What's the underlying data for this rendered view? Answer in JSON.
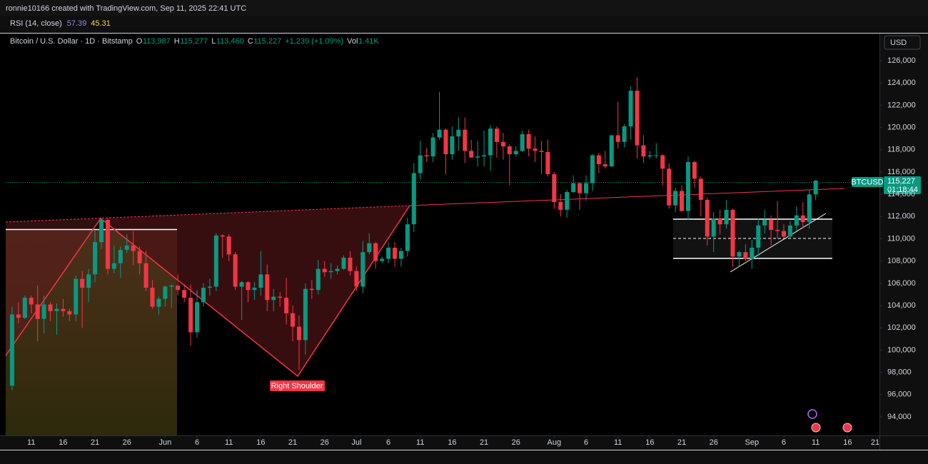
{
  "header": {
    "attribution": "ronnie10166 created with TradingView.com, Sep 11, 2025 22:41 UTC"
  },
  "indicator": {
    "name": "RSI (14, close)",
    "values": [
      57.39,
      45.31
    ],
    "colors": [
      "#9f85e3",
      "#f7d74a"
    ]
  },
  "chart_data": {
    "type": "candlestick",
    "title": "Bitcoin / U.S. Dollar · 1D · Bitstamp",
    "status_line": [
      {
        "key": "O",
        "text": "113,987"
      },
      {
        "key": "H",
        "text": "115,277"
      },
      {
        "key": "L",
        "text": "113,460"
      },
      {
        "key": "C",
        "text": "115,227"
      }
    ],
    "change": "+1,239 (+1.09%)",
    "volume": {
      "key": "Vol",
      "text": "1.41K"
    },
    "currency": "USD",
    "symbol_label": "BTCUSD",
    "last_price_label": "115,227",
    "countdown": "01:18:44",
    "annotation": "Right Shoulder",
    "up_color": "#089981",
    "down_color": "#f23645",
    "grid": false,
    "x": [
      "2025-05-08",
      "2025-05-09",
      "2025-05-10",
      "2025-05-11",
      "2025-05-12",
      "2025-05-13",
      "2025-05-14",
      "2025-05-15",
      "2025-05-16",
      "2025-05-17",
      "2025-05-18",
      "2025-05-19",
      "2025-05-20",
      "2025-05-21",
      "2025-05-22",
      "2025-05-23",
      "2025-05-24",
      "2025-05-25",
      "2025-05-26",
      "2025-05-27",
      "2025-05-28",
      "2025-05-29",
      "2025-05-30",
      "2025-05-31",
      "2025-06-01",
      "2025-06-02",
      "2025-06-03",
      "2025-06-04",
      "2025-06-05",
      "2025-06-06",
      "2025-06-07",
      "2025-06-08",
      "2025-06-09",
      "2025-06-10",
      "2025-06-11",
      "2025-06-12",
      "2025-06-13",
      "2025-06-14",
      "2025-06-15",
      "2025-06-16",
      "2025-06-17",
      "2025-06-18",
      "2025-06-19",
      "2025-06-20",
      "2025-06-21",
      "2025-06-22",
      "2025-06-23",
      "2025-06-24",
      "2025-06-25",
      "2025-06-26",
      "2025-06-27",
      "2025-06-28",
      "2025-06-29",
      "2025-06-30",
      "2025-07-01",
      "2025-07-02",
      "2025-07-03",
      "2025-07-04",
      "2025-07-05",
      "2025-07-06",
      "2025-07-07",
      "2025-07-08",
      "2025-07-09",
      "2025-07-10",
      "2025-07-11",
      "2025-07-12",
      "2025-07-13",
      "2025-07-14",
      "2025-07-15",
      "2025-07-16",
      "2025-07-17",
      "2025-07-18",
      "2025-07-19",
      "2025-07-20",
      "2025-07-21",
      "2025-07-22",
      "2025-07-23",
      "2025-07-24",
      "2025-07-25",
      "2025-07-26",
      "2025-07-27",
      "2025-07-28",
      "2025-07-29",
      "2025-07-30",
      "2025-07-31",
      "2025-08-01",
      "2025-08-02",
      "2025-08-03",
      "2025-08-04",
      "2025-08-05",
      "2025-08-06",
      "2025-08-07",
      "2025-08-08",
      "2025-08-09",
      "2025-08-10",
      "2025-08-11",
      "2025-08-12",
      "2025-08-13",
      "2025-08-14",
      "2025-08-15",
      "2025-08-16",
      "2025-08-17",
      "2025-08-18",
      "2025-08-19",
      "2025-08-20",
      "2025-08-21",
      "2025-08-22",
      "2025-08-23",
      "2025-08-24",
      "2025-08-25",
      "2025-08-26",
      "2025-08-27",
      "2025-08-28",
      "2025-08-29",
      "2025-08-30",
      "2025-08-31",
      "2025-09-01",
      "2025-09-02",
      "2025-09-03",
      "2025-09-04",
      "2025-09-05",
      "2025-09-06",
      "2025-09-07",
      "2025-09-08",
      "2025-09-09",
      "2025-09-10",
      "2025-09-11"
    ],
    "values": [
      [
        96800,
        103900,
        96400,
        103200
      ],
      [
        103200,
        104300,
        102400,
        102900
      ],
      [
        102900,
        104900,
        102800,
        104700
      ],
      [
        104700,
        104900,
        103300,
        104100
      ],
      [
        104100,
        105800,
        100800,
        102800
      ],
      [
        102800,
        104900,
        101500,
        104100
      ],
      [
        104100,
        104300,
        102600,
        103500
      ],
      [
        103500,
        104200,
        101400,
        103700
      ],
      [
        103700,
        104600,
        103000,
        103500
      ],
      [
        103500,
        103700,
        102600,
        103200
      ],
      [
        103200,
        106700,
        102600,
        106400
      ],
      [
        106400,
        107100,
        102000,
        105600
      ],
      [
        105600,
        107300,
        104300,
        106800
      ],
      [
        106800,
        110800,
        106100,
        109700
      ],
      [
        109700,
        111900,
        109100,
        111700
      ],
      [
        111700,
        111800,
        106800,
        107300
      ],
      [
        107300,
        109400,
        106900,
        107800
      ],
      [
        107800,
        109300,
        106500,
        109000
      ],
      [
        109000,
        110400,
        108700,
        109400
      ],
      [
        109400,
        110700,
        107600,
        108900
      ],
      [
        108900,
        109300,
        106800,
        107800
      ],
      [
        107800,
        108900,
        105300,
        105600
      ],
      [
        105600,
        106300,
        103700,
        103900
      ],
      [
        103900,
        104800,
        103200,
        104600
      ],
      [
        104600,
        105800,
        103900,
        105700
      ],
      [
        105700,
        105900,
        103800,
        105800
      ],
      [
        105800,
        106800,
        104900,
        105400
      ],
      [
        105400,
        105900,
        104300,
        104700
      ],
      [
        104700,
        105900,
        100400,
        101600
      ],
      [
        101600,
        105400,
        101100,
        104300
      ],
      [
        104300,
        106000,
        103900,
        105600
      ],
      [
        105600,
        106400,
        104900,
        105700
      ],
      [
        105700,
        110500,
        105300,
        110300
      ],
      [
        110300,
        110400,
        108300,
        110200
      ],
      [
        110200,
        110400,
        108000,
        108600
      ],
      [
        108600,
        108800,
        105400,
        105700
      ],
      [
        105700,
        106200,
        102700,
        106100
      ],
      [
        106100,
        106200,
        104300,
        105400
      ],
      [
        105400,
        106100,
        104500,
        105600
      ],
      [
        105600,
        108900,
        104900,
        106800
      ],
      [
        106800,
        107700,
        103500,
        104500
      ],
      [
        104500,
        105500,
        103500,
        104800
      ],
      [
        104800,
        105200,
        103900,
        104700
      ],
      [
        104700,
        106500,
        102300,
        103300
      ],
      [
        103300,
        104000,
        100800,
        102100
      ],
      [
        102100,
        103100,
        98200,
        100900
      ],
      [
        100900,
        106000,
        99600,
        105500
      ],
      [
        105500,
        106300,
        104600,
        105400
      ],
      [
        105400,
        108100,
        105000,
        107300
      ],
      [
        107300,
        108000,
        106600,
        107000
      ],
      [
        107000,
        107800,
        106400,
        107100
      ],
      [
        107100,
        107600,
        106800,
        107300
      ],
      [
        107300,
        108500,
        107200,
        108300
      ],
      [
        108300,
        108900,
        106700,
        107100
      ],
      [
        107100,
        107500,
        105300,
        105700
      ],
      [
        105700,
        109800,
        105100,
        108800
      ],
      [
        108800,
        110500,
        108600,
        109600
      ],
      [
        109600,
        109700,
        107300,
        108000
      ],
      [
        108000,
        108400,
        107800,
        108200
      ],
      [
        108200,
        109700,
        107800,
        109200
      ],
      [
        109200,
        109700,
        107500,
        108200
      ],
      [
        108200,
        109200,
        107500,
        108900
      ],
      [
        108900,
        111900,
        108400,
        111300
      ],
      [
        111300,
        116800,
        110600,
        115900
      ],
      [
        115900,
        118800,
        115300,
        117500
      ],
      [
        117500,
        118200,
        116900,
        117400
      ],
      [
        117400,
        119500,
        116900,
        119100
      ],
      [
        119100,
        123200,
        118900,
        119800
      ],
      [
        119800,
        119900,
        115800,
        117600
      ],
      [
        117600,
        120100,
        117100,
        119200
      ],
      [
        119200,
        120900,
        117900,
        119800
      ],
      [
        119800,
        120900,
        116800,
        117900
      ],
      [
        117900,
        118900,
        117300,
        117300
      ],
      [
        117300,
        118800,
        116500,
        117400
      ],
      [
        117400,
        119700,
        116500,
        117500
      ],
      [
        117500,
        120200,
        116100,
        119900
      ],
      [
        119900,
        120100,
        117300,
        118700
      ],
      [
        118700,
        119500,
        117100,
        118300
      ],
      [
        118300,
        118500,
        114800,
        117600
      ],
      [
        117600,
        118300,
        117400,
        117900
      ],
      [
        117900,
        119700,
        117800,
        119400
      ],
      [
        119400,
        119800,
        117400,
        118100
      ],
      [
        118100,
        119200,
        116900,
        117900
      ],
      [
        117900,
        118800,
        115800,
        117800
      ],
      [
        117800,
        118900,
        115600,
        115800
      ],
      [
        115800,
        116000,
        112700,
        113300
      ],
      [
        113300,
        114000,
        112000,
        112600
      ],
      [
        112600,
        114400,
        111900,
        114200
      ],
      [
        114200,
        115700,
        114100,
        115000
      ],
      [
        115000,
        115100,
        112600,
        114100
      ],
      [
        114100,
        115700,
        113400,
        115000
      ],
      [
        115000,
        117600,
        114300,
        117500
      ],
      [
        117500,
        117700,
        115900,
        116700
      ],
      [
        116700,
        117900,
        116300,
        116500
      ],
      [
        116500,
        119300,
        116500,
        119300
      ],
      [
        119300,
        122300,
        118100,
        118700
      ],
      [
        118700,
        120300,
        118200,
        120100
      ],
      [
        120100,
        123700,
        118900,
        123300
      ],
      [
        123300,
        124500,
        117200,
        118400
      ],
      [
        118400,
        119300,
        116800,
        117400
      ],
      [
        117400,
        117900,
        117200,
        117500
      ],
      [
        117500,
        118600,
        117200,
        117500
      ],
      [
        117500,
        117600,
        114800,
        116300
      ],
      [
        116300,
        116800,
        112700,
        113000
      ],
      [
        113000,
        114600,
        112400,
        114300
      ],
      [
        114300,
        114800,
        112400,
        112500
      ],
      [
        112500,
        117400,
        111700,
        116900
      ],
      [
        116900,
        117000,
        114600,
        115400
      ],
      [
        115400,
        115600,
        112000,
        113500
      ],
      [
        113500,
        113700,
        109400,
        110200
      ],
      [
        110200,
        112400,
        108800,
        111800
      ],
      [
        111800,
        112600,
        110400,
        111300
      ],
      [
        111300,
        113500,
        110900,
        112600
      ],
      [
        112600,
        112700,
        107500,
        108400
      ],
      [
        108400,
        108900,
        107500,
        108800
      ],
      [
        108800,
        109500,
        108000,
        108200
      ],
      [
        108200,
        109900,
        107300,
        109200
      ],
      [
        109200,
        111800,
        108400,
        111200
      ],
      [
        111200,
        112600,
        110500,
        111700
      ],
      [
        111700,
        112100,
        109400,
        110800
      ],
      [
        110800,
        113400,
        110000,
        110700
      ],
      [
        110700,
        111300,
        110100,
        110200
      ],
      [
        110200,
        111600,
        110100,
        111200
      ],
      [
        111200,
        112900,
        110700,
        112100
      ],
      [
        112100,
        113300,
        110900,
        111500
      ],
      [
        111500,
        114400,
        110900,
        113988
      ],
      [
        113987,
        115277,
        113460,
        115227
      ]
    ],
    "xlim": [
      "2025-05-07",
      "2025-09-21"
    ],
    "xticks": [
      {
        "value": "2025-05-11",
        "label": "11"
      },
      {
        "value": "2025-05-16",
        "label": "16"
      },
      {
        "value": "2025-05-21",
        "label": "21"
      },
      {
        "value": "2025-05-26",
        "label": "26"
      },
      {
        "value": "2025-06-01",
        "label": "Jun"
      },
      {
        "value": "2025-06-06",
        "label": "6"
      },
      {
        "value": "2025-06-11",
        "label": "11"
      },
      {
        "value": "2025-06-16",
        "label": "16"
      },
      {
        "value": "2025-06-21",
        "label": "21"
      },
      {
        "value": "2025-06-26",
        "label": "26"
      },
      {
        "value": "2025-07-01",
        "label": "Jul"
      },
      {
        "value": "2025-07-06",
        "label": "6"
      },
      {
        "value": "2025-07-11",
        "label": "11"
      },
      {
        "value": "2025-07-16",
        "label": "16"
      },
      {
        "value": "2025-07-21",
        "label": "21"
      },
      {
        "value": "2025-07-26",
        "label": "26"
      },
      {
        "value": "2025-08-01",
        "label": "Aug"
      },
      {
        "value": "2025-08-06",
        "label": "6"
      },
      {
        "value": "2025-08-11",
        "label": "11"
      },
      {
        "value": "2025-08-16",
        "label": "16"
      },
      {
        "value": "2025-08-21",
        "label": "21"
      },
      {
        "value": "2025-08-26",
        "label": "26"
      },
      {
        "value": "2025-09-01",
        "label": "Sep"
      },
      {
        "value": "2025-09-06",
        "label": "6"
      },
      {
        "value": "2025-09-11",
        "label": "11"
      },
      {
        "value": "2025-09-16",
        "label": "16"
      },
      {
        "value": "2025-09-21",
        "label": "21"
      }
    ],
    "ylim": [
      92330,
      128440
    ],
    "yticks": [
      {
        "value": 94000,
        "label": "94,000"
      },
      {
        "value": 96000,
        "label": "96,000"
      },
      {
        "value": 98000,
        "label": "98,000"
      },
      {
        "value": 100000,
        "label": "100,000"
      },
      {
        "value": 102000,
        "label": "102,000"
      },
      {
        "value": 104000,
        "label": "104,000"
      },
      {
        "value": 106000,
        "label": "106,000"
      },
      {
        "value": 108000,
        "label": "108,000"
      },
      {
        "value": 110000,
        "label": "110,000"
      },
      {
        "value": 112000,
        "label": "112,000"
      },
      {
        "value": 114000,
        "label": "114,000"
      },
      {
        "value": 116000,
        "label": "116,000"
      },
      {
        "value": 118000,
        "label": "118,000"
      },
      {
        "value": 120000,
        "label": "120,000"
      },
      {
        "value": 122000,
        "label": "122,000"
      },
      {
        "value": 124000,
        "label": "124,000"
      },
      {
        "value": 126000,
        "label": "126,000"
      }
    ]
  }
}
